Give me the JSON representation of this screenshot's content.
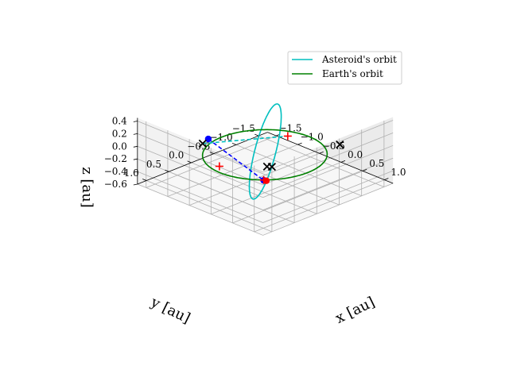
{
  "chart_data": {
    "type": "line",
    "projection": "3d",
    "grid": true,
    "legend_position": "top-right",
    "xlabel": "x [au]",
    "ylabel": "y [au]",
    "zlabel": "z [au]",
    "xlim": [
      -1.7,
      1.2
    ],
    "ylim": [
      -1.7,
      1.2
    ],
    "zlim": [
      -0.6,
      0.45
    ],
    "x_ticks": [
      "−1.5",
      "−1.0",
      "−0.5",
      "0.0",
      "0.5",
      "1.0"
    ],
    "y_ticks": [
      "1.0",
      "0.5",
      "0.0",
      "−0.5",
      "−1.0",
      "−1.5"
    ],
    "z_ticks": [
      "0.4",
      "0.2",
      "0.0",
      "−0.2",
      "−0.4",
      "−0.6"
    ],
    "colors": {
      "asteroid_orbit": "#00bfbf",
      "earth_orbit": "#008000",
      "segment": "#0000ff",
      "projection": "#00bfbf",
      "cross_marker": "#000000",
      "plus_marker": "#ff0000",
      "dot_marker": "#0000ff",
      "red_dot": "#ff0000"
    },
    "series": [
      {
        "name": "Asteroid's orbit",
        "shape": "ellipse",
        "center": [
          -0.27,
          -0.27,
          -0.1
        ],
        "semi_axis_u": [
          1.0,
          1.0,
          0.0
        ],
        "semi_axis_v": [
          0.18,
          -0.18,
          0.5
        ],
        "color": "#00bfbf"
      },
      {
        "name": "Earth's orbit",
        "shape": "circle",
        "center": [
          0,
          0,
          0
        ],
        "radius": 1.0,
        "color": "#008000"
      }
    ],
    "points": [
      {
        "marker": "dot",
        "color": "#0000ff",
        "x": -1.1,
        "y": 0.2,
        "z": 0.0
      },
      {
        "marker": "dot",
        "color": "#0000ff",
        "x": 0.72,
        "y": 0.72,
        "z": 0.0
      },
      {
        "marker": "dot",
        "color": "#ff0000",
        "x": 0.76,
        "y": 0.7,
        "z": 0.0
      },
      {
        "marker": "plus",
        "color": "#ff0000",
        "x": 0.71,
        "y": 0.71,
        "z": 0.0
      },
      {
        "marker": "plus",
        "color": "#ff0000",
        "x": -0.19,
        "y": 0.83,
        "z": 0.0
      },
      {
        "marker": "plus",
        "color": "#ff0000",
        "x": -0.87,
        "y": -1.35,
        "z": -0.33
      },
      {
        "marker": "x",
        "color": "#000000",
        "x": -0.4,
        "y": 1.0,
        "z": 0.35
      },
      {
        "marker": "x",
        "color": "#000000",
        "x": 0.02,
        "y": -0.03,
        "z": -0.19
      },
      {
        "marker": "x",
        "color": "#000000",
        "x": 0.08,
        "y": -0.08,
        "z": -0.19
      },
      {
        "marker": "x",
        "color": "#000000",
        "x": -0.05,
        "y": -1.72,
        "z": -0.34
      }
    ],
    "lines": [
      {
        "style": "dashed",
        "color": "#0000ff",
        "from": [
          -1.1,
          0.2,
          0.0
        ],
        "to": [
          0.72,
          0.72,
          0.0
        ]
      },
      {
        "style": "dashed",
        "color": "#00bfbf",
        "from": [
          -0.4,
          1.0,
          0.35
        ],
        "to": [
          -0.87,
          -1.35,
          -0.33
        ]
      }
    ]
  }
}
